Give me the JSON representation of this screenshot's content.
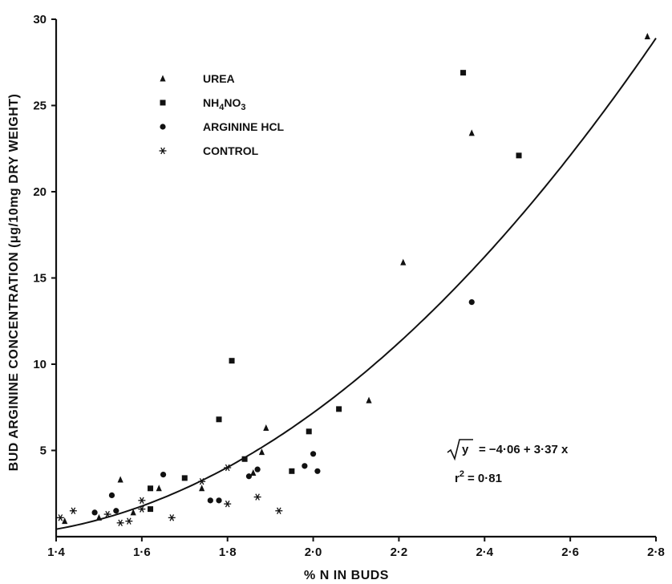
{
  "chart_data": {
    "type": "scatter",
    "xlabel": "% N IN BUDS",
    "ylabel": "BUD ARGININE CONCENTRATION (μg/10mg DRY WEIGHT)",
    "xlim": [
      1.4,
      2.8
    ],
    "ylim": [
      0,
      30
    ],
    "x_ticks": [
      "1·4",
      "1·6",
      "1·8",
      "2·0",
      "2·2",
      "2·4",
      "2·6",
      "2·8"
    ],
    "y_ticks": [
      "5",
      "10",
      "15",
      "20",
      "25",
      "30"
    ],
    "grid": false,
    "legend_position": "top-left",
    "series": [
      {
        "name": "UREA",
        "marker": "triangle",
        "points": [
          [
            1.42,
            0.9
          ],
          [
            1.5,
            1.1
          ],
          [
            1.55,
            3.3
          ],
          [
            1.58,
            1.4
          ],
          [
            1.64,
            2.8
          ],
          [
            1.74,
            2.8
          ],
          [
            1.86,
            3.7
          ],
          [
            1.88,
            4.9
          ],
          [
            1.89,
            6.3
          ],
          [
            2.13,
            7.9
          ],
          [
            2.21,
            15.9
          ],
          [
            2.37,
            23.4
          ],
          [
            2.78,
            29.0
          ]
        ]
      },
      {
        "name": "NH4NO3",
        "marker": "square",
        "points": [
          [
            1.62,
            1.6
          ],
          [
            1.62,
            2.8
          ],
          [
            1.7,
            3.4
          ],
          [
            1.78,
            6.8
          ],
          [
            1.81,
            10.2
          ],
          [
            1.84,
            4.5
          ],
          [
            1.95,
            3.8
          ],
          [
            1.99,
            6.1
          ],
          [
            2.06,
            7.4
          ],
          [
            2.35,
            26.9
          ],
          [
            2.48,
            22.1
          ]
        ]
      },
      {
        "name": "ARGININE HCL",
        "marker": "circle",
        "points": [
          [
            1.49,
            1.4
          ],
          [
            1.53,
            2.4
          ],
          [
            1.54,
            1.5
          ],
          [
            1.65,
            3.6
          ],
          [
            1.76,
            2.1
          ],
          [
            1.78,
            2.1
          ],
          [
            1.85,
            3.5
          ],
          [
            1.87,
            3.9
          ],
          [
            1.98,
            4.1
          ],
          [
            2.0,
            4.8
          ],
          [
            2.01,
            3.8
          ],
          [
            2.37,
            13.6
          ]
        ]
      },
      {
        "name": "CONTROL",
        "marker": "star",
        "points": [
          [
            1.41,
            1.1
          ],
          [
            1.44,
            1.5
          ],
          [
            1.52,
            1.3
          ],
          [
            1.55,
            0.8
          ],
          [
            1.57,
            0.9
          ],
          [
            1.6,
            1.6
          ],
          [
            1.6,
            2.1
          ],
          [
            1.67,
            1.1
          ],
          [
            1.74,
            3.2
          ],
          [
            1.8,
            4.0
          ],
          [
            1.8,
            1.9
          ],
          [
            1.87,
            2.3
          ],
          [
            1.92,
            1.5
          ]
        ]
      }
    ],
    "fit_line": {
      "intercept": -4.06,
      "slope": 3.37,
      "transform": "sqrt_y"
    },
    "annotations": {
      "equation_y": "y",
      "equation_rhs": "= −4·06 + 3·37 x",
      "r2_prefix": "r",
      "r2_exp": "2",
      "r2_value": "= 0·81"
    },
    "legend_labels": {
      "urea": "UREA",
      "nh4no3_main1": "NH",
      "nh4no3_sub1": "4",
      "nh4no3_main2": "NO",
      "nh4no3_sub2": "3",
      "arginine": "ARGININE HCL",
      "control": "CONTROL"
    }
  }
}
